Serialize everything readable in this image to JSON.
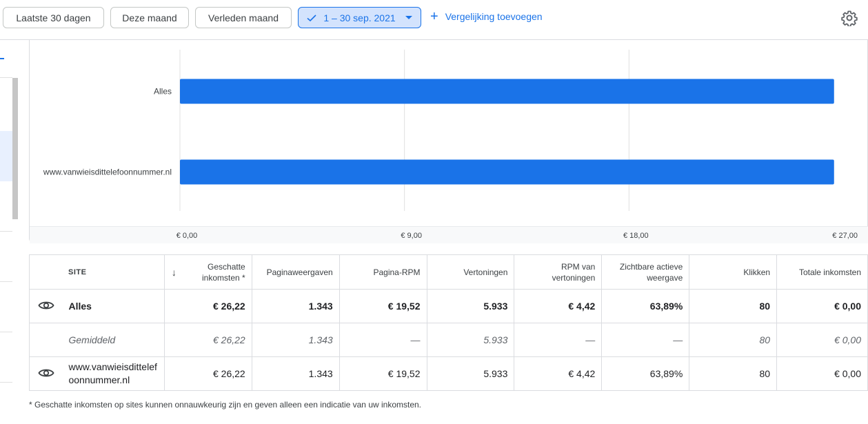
{
  "toolbar": {
    "range_chips": [
      {
        "label": "Laatste 30 dagen"
      },
      {
        "label": "Deze maand"
      },
      {
        "label": "Verleden maand"
      }
    ],
    "selected_range": "1 – 30 sep. 2021",
    "add_comparison": "Vergelijking toevoegen"
  },
  "chart_data": {
    "type": "bar",
    "orientation": "horizontal",
    "categories": [
      "Alles",
      "www.vanwieisdittelefoonnummer.nl"
    ],
    "values": [
      26.22,
      26.22
    ],
    "xlim": [
      0,
      27
    ],
    "x_ticks": [
      "€ 0,00",
      "€ 9,00",
      "€ 18,00",
      "€ 27,00"
    ],
    "grid": true,
    "bar_color": "#1a73e8"
  },
  "table": {
    "headers": {
      "site": "SITE",
      "sort_arrow": "↓",
      "est_earnings": "Geschatte inkomsten *",
      "page_views": "Paginaweergaven",
      "page_rpm": "Pagina-RPM",
      "impressions": "Vertoningen",
      "impr_rpm": "RPM van vertoningen",
      "active_view": "Zichtbare actieve weergave",
      "clicks": "Klikken",
      "total_earnings": "Totale inkomsten"
    },
    "rows": [
      {
        "site": "Alles",
        "est": "€ 26,22",
        "views": "1.343",
        "prpm": "€ 19,52",
        "impr": "5.933",
        "irpm": "€ 4,42",
        "av": "63,89%",
        "clicks": "80",
        "total": "€ 0,00"
      },
      {
        "site": "Gemiddeld",
        "est": "€ 26,22",
        "views": "1.343",
        "prpm": "—",
        "impr": "5.933",
        "irpm": "—",
        "av": "—",
        "clicks": "80",
        "total": "€ 0,00"
      },
      {
        "site": "www.vanwieisdittelefoonnummer.nl",
        "est": "€ 26,22",
        "views": "1.343",
        "prpm": "€ 19,52",
        "impr": "5.933",
        "irpm": "€ 4,42",
        "av": "63,89%",
        "clicks": "80",
        "total": "€ 0,00"
      }
    ]
  },
  "footnote": "* Geschatte inkomsten op sites kunnen onnauwkeurig zijn en geven alleen een indicatie van uw inkomsten.",
  "icons": {
    "eye": "eye-icon",
    "gear": "gear-icon",
    "check": "check-icon",
    "plus": "plus-icon"
  }
}
